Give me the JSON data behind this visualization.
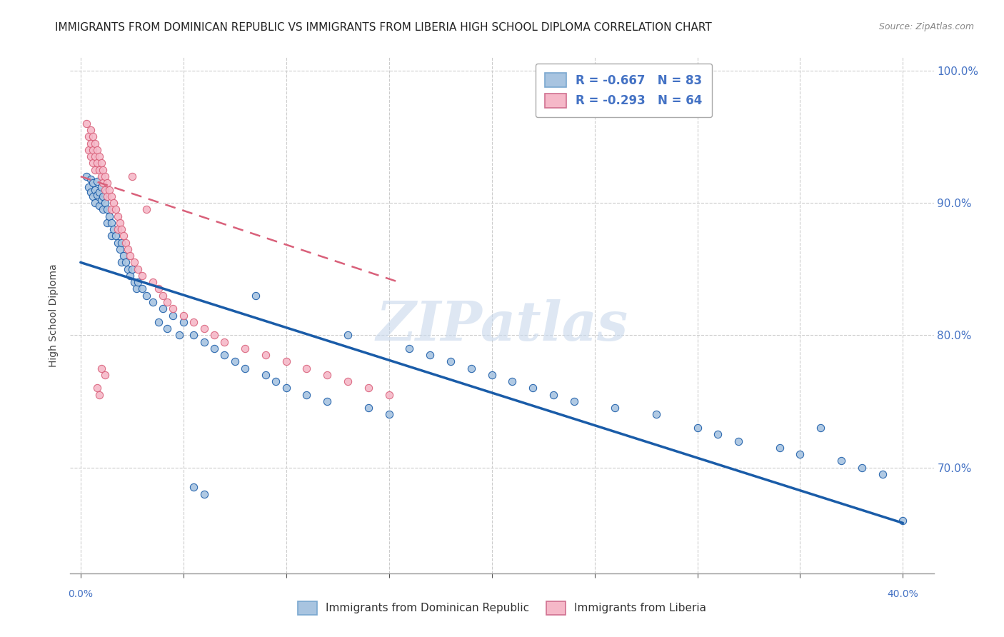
{
  "title": "IMMIGRANTS FROM DOMINICAN REPUBLIC VS IMMIGRANTS FROM LIBERIA HIGH SCHOOL DIPLOMA CORRELATION CHART",
  "source": "Source: ZipAtlas.com",
  "ylabel": "High School Diploma",
  "legend_blue_r": "-0.667",
  "legend_blue_n": "83",
  "legend_pink_r": "-0.293",
  "legend_pink_n": "64",
  "legend_blue_label": "Immigrants from Dominican Republic",
  "legend_pink_label": "Immigrants from Liberia",
  "scatter_blue_color": "#a8c4e0",
  "scatter_pink_color": "#f5b8c8",
  "line_blue_color": "#1a5ca8",
  "line_pink_color": "#d9607a",
  "watermark": "ZIPatlas",
  "blue_points": [
    [
      0.003,
      0.92
    ],
    [
      0.004,
      0.912
    ],
    [
      0.005,
      0.918
    ],
    [
      0.005,
      0.908
    ],
    [
      0.006,
      0.915
    ],
    [
      0.006,
      0.905
    ],
    [
      0.007,
      0.91
    ],
    [
      0.007,
      0.9
    ],
    [
      0.008,
      0.916
    ],
    [
      0.008,
      0.906
    ],
    [
      0.009,
      0.908
    ],
    [
      0.009,
      0.898
    ],
    [
      0.01,
      0.912
    ],
    [
      0.01,
      0.902
    ],
    [
      0.011,
      0.905
    ],
    [
      0.011,
      0.895
    ],
    [
      0.012,
      0.9
    ],
    [
      0.013,
      0.895
    ],
    [
      0.013,
      0.885
    ],
    [
      0.014,
      0.89
    ],
    [
      0.015,
      0.885
    ],
    [
      0.015,
      0.875
    ],
    [
      0.016,
      0.88
    ],
    [
      0.017,
      0.875
    ],
    [
      0.018,
      0.87
    ],
    [
      0.019,
      0.865
    ],
    [
      0.02,
      0.87
    ],
    [
      0.02,
      0.855
    ],
    [
      0.021,
      0.86
    ],
    [
      0.022,
      0.855
    ],
    [
      0.023,
      0.85
    ],
    [
      0.024,
      0.845
    ],
    [
      0.025,
      0.85
    ],
    [
      0.026,
      0.84
    ],
    [
      0.027,
      0.835
    ],
    [
      0.028,
      0.84
    ],
    [
      0.03,
      0.835
    ],
    [
      0.032,
      0.83
    ],
    [
      0.035,
      0.825
    ],
    [
      0.038,
      0.81
    ],
    [
      0.04,
      0.82
    ],
    [
      0.042,
      0.805
    ],
    [
      0.045,
      0.815
    ],
    [
      0.048,
      0.8
    ],
    [
      0.05,
      0.81
    ],
    [
      0.055,
      0.8
    ],
    [
      0.06,
      0.795
    ],
    [
      0.065,
      0.79
    ],
    [
      0.07,
      0.785
    ],
    [
      0.075,
      0.78
    ],
    [
      0.08,
      0.775
    ],
    [
      0.085,
      0.83
    ],
    [
      0.09,
      0.77
    ],
    [
      0.095,
      0.765
    ],
    [
      0.1,
      0.76
    ],
    [
      0.11,
      0.755
    ],
    [
      0.12,
      0.75
    ],
    [
      0.13,
      0.8
    ],
    [
      0.14,
      0.745
    ],
    [
      0.15,
      0.74
    ],
    [
      0.16,
      0.79
    ],
    [
      0.17,
      0.785
    ],
    [
      0.18,
      0.78
    ],
    [
      0.19,
      0.775
    ],
    [
      0.2,
      0.77
    ],
    [
      0.21,
      0.765
    ],
    [
      0.22,
      0.76
    ],
    [
      0.23,
      0.755
    ],
    [
      0.24,
      0.75
    ],
    [
      0.26,
      0.745
    ],
    [
      0.28,
      0.74
    ],
    [
      0.3,
      0.73
    ],
    [
      0.31,
      0.725
    ],
    [
      0.32,
      0.72
    ],
    [
      0.34,
      0.715
    ],
    [
      0.35,
      0.71
    ],
    [
      0.36,
      0.73
    ],
    [
      0.37,
      0.705
    ],
    [
      0.38,
      0.7
    ],
    [
      0.39,
      0.695
    ],
    [
      0.4,
      0.66
    ],
    [
      0.055,
      0.685
    ],
    [
      0.06,
      0.68
    ]
  ],
  "pink_points": [
    [
      0.003,
      0.96
    ],
    [
      0.004,
      0.95
    ],
    [
      0.004,
      0.94
    ],
    [
      0.005,
      0.955
    ],
    [
      0.005,
      0.945
    ],
    [
      0.005,
      0.935
    ],
    [
      0.006,
      0.95
    ],
    [
      0.006,
      0.94
    ],
    [
      0.006,
      0.93
    ],
    [
      0.007,
      0.945
    ],
    [
      0.007,
      0.935
    ],
    [
      0.007,
      0.925
    ],
    [
      0.008,
      0.94
    ],
    [
      0.008,
      0.93
    ],
    [
      0.009,
      0.935
    ],
    [
      0.009,
      0.925
    ],
    [
      0.01,
      0.93
    ],
    [
      0.01,
      0.92
    ],
    [
      0.011,
      0.925
    ],
    [
      0.011,
      0.915
    ],
    [
      0.012,
      0.92
    ],
    [
      0.012,
      0.91
    ],
    [
      0.013,
      0.915
    ],
    [
      0.013,
      0.905
    ],
    [
      0.014,
      0.91
    ],
    [
      0.015,
      0.905
    ],
    [
      0.015,
      0.895
    ],
    [
      0.016,
      0.9
    ],
    [
      0.017,
      0.895
    ],
    [
      0.018,
      0.89
    ],
    [
      0.018,
      0.88
    ],
    [
      0.019,
      0.885
    ],
    [
      0.02,
      0.88
    ],
    [
      0.021,
      0.875
    ],
    [
      0.022,
      0.87
    ],
    [
      0.023,
      0.865
    ],
    [
      0.024,
      0.86
    ],
    [
      0.025,
      0.92
    ],
    [
      0.026,
      0.855
    ],
    [
      0.028,
      0.85
    ],
    [
      0.03,
      0.845
    ],
    [
      0.032,
      0.895
    ],
    [
      0.035,
      0.84
    ],
    [
      0.038,
      0.835
    ],
    [
      0.04,
      0.83
    ],
    [
      0.042,
      0.825
    ],
    [
      0.045,
      0.82
    ],
    [
      0.05,
      0.815
    ],
    [
      0.055,
      0.81
    ],
    [
      0.06,
      0.805
    ],
    [
      0.065,
      0.8
    ],
    [
      0.07,
      0.795
    ],
    [
      0.08,
      0.79
    ],
    [
      0.09,
      0.785
    ],
    [
      0.1,
      0.78
    ],
    [
      0.11,
      0.775
    ],
    [
      0.12,
      0.77
    ],
    [
      0.13,
      0.765
    ],
    [
      0.14,
      0.76
    ],
    [
      0.15,
      0.755
    ],
    [
      0.01,
      0.775
    ],
    [
      0.012,
      0.77
    ],
    [
      0.008,
      0.76
    ],
    [
      0.009,
      0.755
    ]
  ],
  "blue_line_x": [
    0.0,
    0.4
  ],
  "blue_line_y": [
    0.855,
    0.658
  ],
  "pink_line_x": [
    0.0,
    0.155
  ],
  "pink_line_y": [
    0.92,
    0.84
  ],
  "xlim": [
    -0.005,
    0.415
  ],
  "ylim": [
    0.62,
    1.01
  ],
  "background_color": "#ffffff",
  "grid_color": "#cccccc",
  "title_fontsize": 11,
  "axis_label_fontsize": 10,
  "tick_fontsize": 10,
  "watermark_color": "#c8d8ec",
  "watermark_fontsize": 55,
  "right_yticks": [
    1.0,
    0.9,
    0.8,
    0.7
  ],
  "right_yticklabels": [
    "100.0%",
    "90.0%",
    "80.0%",
    "70.0%"
  ]
}
